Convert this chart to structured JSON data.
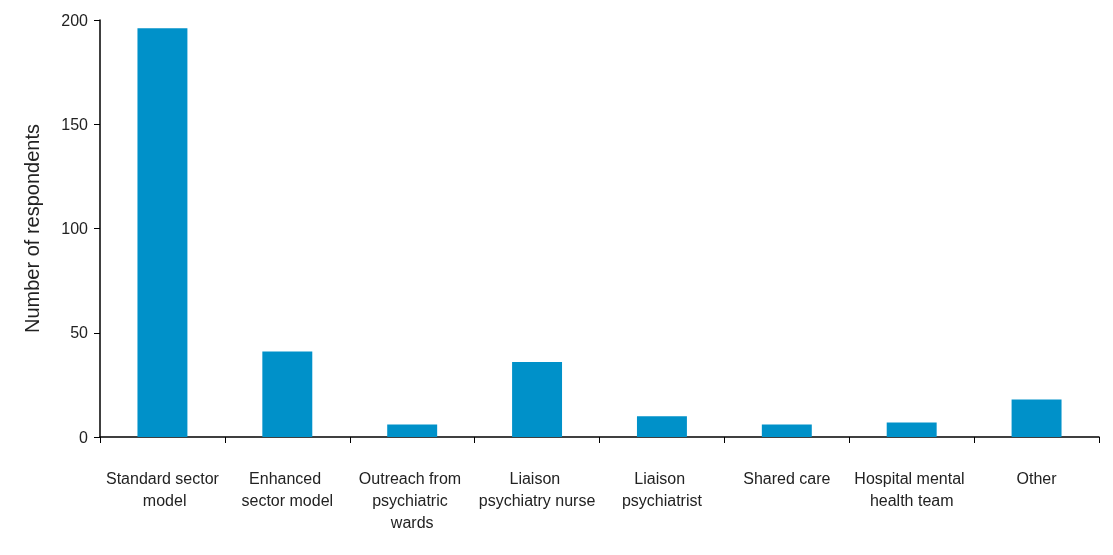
{
  "chart_data": {
    "type": "bar",
    "ylabel": "Number of respondents",
    "categories": [
      "Standard sector model",
      "Enhanced sector model",
      "Outreach from psychiatric wards",
      "Liaison psychiatry nurse",
      "Liaison psychiatrist",
      "Shared care",
      "Hospital mental health team",
      "Other"
    ],
    "values": [
      196,
      41,
      6,
      36,
      10,
      6,
      7,
      18
    ],
    "color": "#0091c9",
    "ylim": [
      0,
      200
    ],
    "yticks": [
      0,
      50,
      100,
      150,
      200
    ],
    "grid": false
  }
}
